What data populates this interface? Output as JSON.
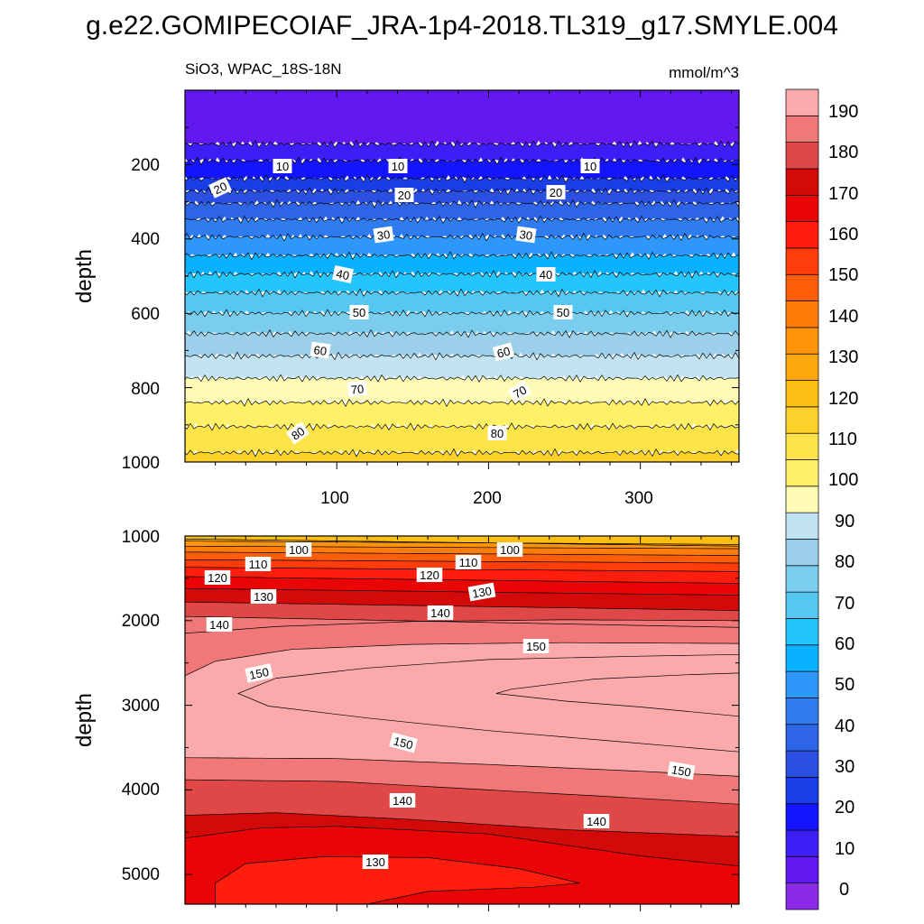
{
  "chart_data": {
    "type": "heatmap",
    "title": "g.e22.GOMIPECOIAF_JRA-1p4-2018.TL319_g17.SMYLE.004",
    "upper_panel": {
      "left_label": "SiO3, WPAC_18S-18N",
      "right_label": "mmol/m^3",
      "ylabel": "depth",
      "ylim": [
        1000,
        0
      ],
      "xlim": [
        0,
        365
      ],
      "y_ticks": [
        "200",
        "400",
        "600",
        "800",
        "1000"
      ],
      "x_ticks": [
        "100",
        "200",
        "300"
      ],
      "contour_labels": [
        "10",
        "10",
        "10",
        "20",
        "20",
        "20",
        "30",
        "30",
        "40",
        "40",
        "50",
        "50",
        "60",
        "60",
        "70",
        "70",
        "80",
        "80"
      ]
    },
    "lower_panel": {
      "ylabel": "depth",
      "ylim": [
        5350,
        1000
      ],
      "xlim": [
        0,
        365
      ],
      "y_ticks": [
        "1000",
        "2000",
        "3000",
        "4000",
        "5000"
      ],
      "contour_labels": [
        "100",
        "100",
        "110",
        "110",
        "120",
        "120",
        "130",
        "130",
        "140",
        "140",
        "150",
        "150",
        "150",
        "150",
        "140",
        "140",
        "130"
      ]
    },
    "colorbar": {
      "levels": [
        0,
        10,
        20,
        30,
        40,
        50,
        60,
        70,
        80,
        90,
        100,
        110,
        120,
        130,
        140,
        150,
        160,
        170,
        180,
        190
      ],
      "tick_labels": [
        "0",
        "10",
        "20",
        "30",
        "40",
        "50",
        "60",
        "70",
        "80",
        "90",
        "100",
        "110",
        "120",
        "130",
        "140",
        "150",
        "160",
        "170",
        "180",
        "190"
      ],
      "colors": [
        "#8b2be8",
        "#6119f0",
        "#3d1ef5",
        "#1414ff",
        "#1a3ee6",
        "#2b4fe0",
        "#2e64e6",
        "#2f7cf0",
        "#2e97fa",
        "#09b2ff",
        "#24c4fc",
        "#55c8f2",
        "#7bcdee",
        "#9ccfea",
        "#c1e3f2",
        "#fefbb6",
        "#fff068",
        "#ffe449",
        "#fcd22a",
        "#fbbf13",
        "#fca80c",
        "#fd940a",
        "#fe7c0a",
        "#fe5e0a",
        "#fe3d0a",
        "#ff1e0d",
        "#e90505",
        "#d40a0a",
        "#e04848",
        "#f07878",
        "#faaaaa"
      ]
    }
  }
}
